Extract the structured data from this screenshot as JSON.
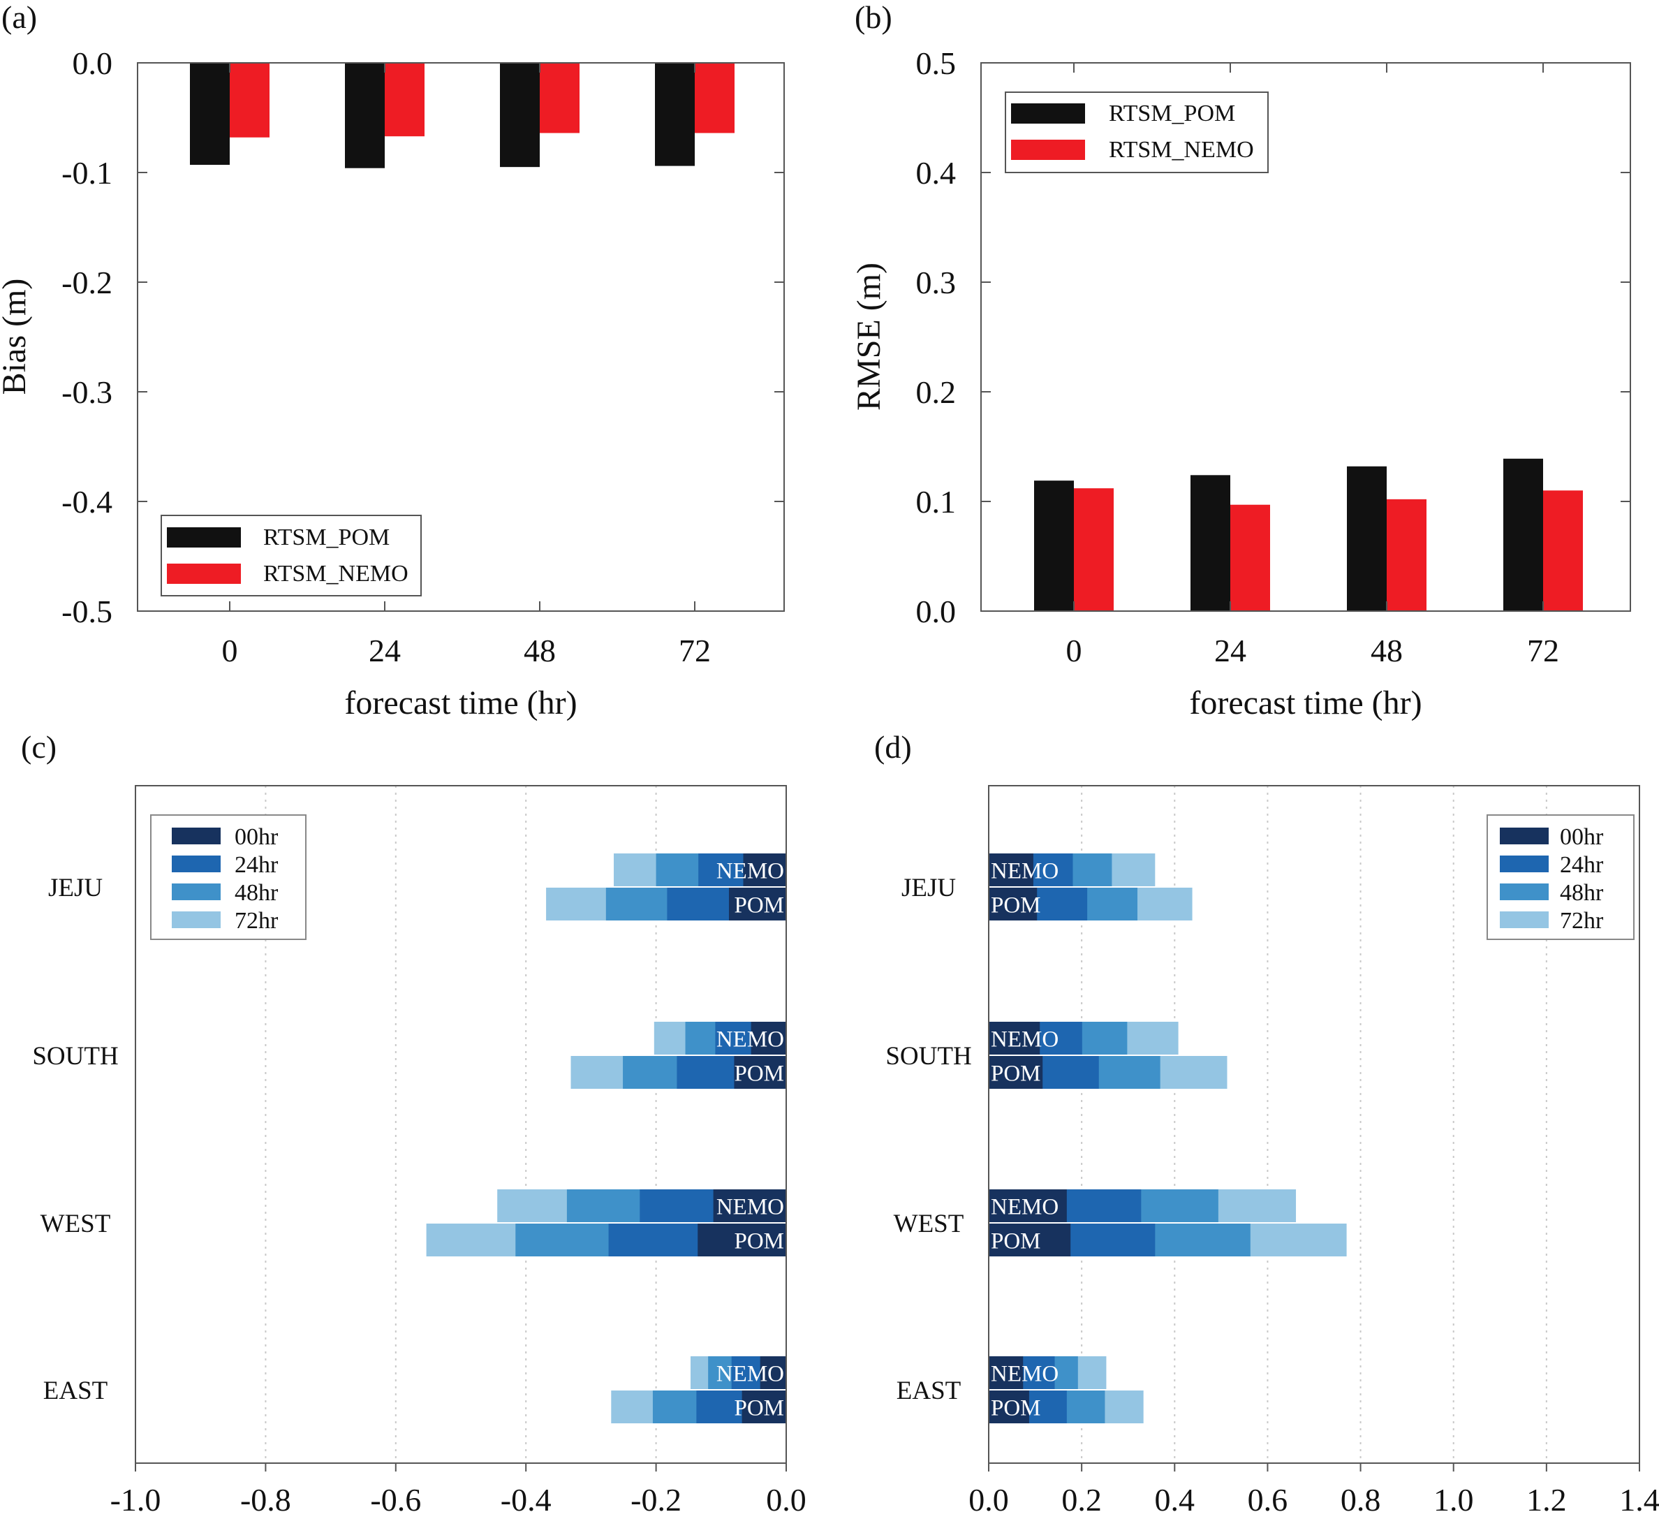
{
  "chart_data": [
    {
      "panel": "(a)",
      "type": "bar",
      "title": "",
      "xlabel": "forecast time (hr)",
      "ylabel": "Bias (m)",
      "categories": [
        "0",
        "24",
        "48",
        "72"
      ],
      "ylim": [
        -0.5,
        0.0
      ],
      "yticks": [
        "0.0",
        "-0.1",
        "-0.2",
        "-0.3",
        "-0.4",
        "-0.5"
      ],
      "ytick_values": [
        0.0,
        -0.1,
        -0.2,
        -0.3,
        -0.4,
        -0.5
      ],
      "legend_position": "bottom-left",
      "series": [
        {
          "name": "RTSM_POM",
          "color": "#111111",
          "values": [
            -0.093,
            -0.096,
            -0.095,
            -0.094
          ]
        },
        {
          "name": "RTSM_NEMO",
          "color": "#ee1c24",
          "values": [
            -0.068,
            -0.067,
            -0.064,
            -0.064
          ]
        }
      ]
    },
    {
      "panel": "(b)",
      "type": "bar",
      "title": "",
      "xlabel": "forecast time (hr)",
      "ylabel": "RMSE (m)",
      "categories": [
        "0",
        "24",
        "48",
        "72"
      ],
      "ylim": [
        0.0,
        0.5
      ],
      "yticks": [
        "0.5",
        "0.4",
        "0.3",
        "0.2",
        "0.1",
        "0.0"
      ],
      "ytick_values": [
        0.5,
        0.4,
        0.3,
        0.2,
        0.1,
        0.0
      ],
      "legend_position": "top-left",
      "series": [
        {
          "name": "RTSM_POM",
          "color": "#111111",
          "values": [
            0.119,
            0.124,
            0.132,
            0.139
          ]
        },
        {
          "name": "RTSM_NEMO",
          "color": "#ee1c24",
          "values": [
            0.112,
            0.097,
            0.102,
            0.11
          ]
        }
      ]
    },
    {
      "panel": "(c)",
      "type": "bar",
      "orientation": "horizontal-stacked",
      "title": "",
      "xlim": [
        -1.0,
        0.0
      ],
      "xticks": [
        "-1.0",
        "-0.8",
        "-0.6",
        "-0.4",
        "-0.2",
        "0.0"
      ],
      "xtick_values": [
        -1.0,
        -0.8,
        -0.6,
        -0.4,
        -0.2,
        0.0
      ],
      "legend_position": "top-left",
      "categories": [
        "JEJU",
        "SOUTH",
        "WEST",
        "EAST"
      ],
      "bar_labels": [
        "NEMO",
        "POM"
      ],
      "stack_names": [
        "00hr",
        "24hr",
        "48hr",
        "72hr"
      ],
      "stack_colors": [
        "#17325e",
        "#1e66b0",
        "#3f91c9",
        "#94c5e3"
      ],
      "values": {
        "JEJU": {
          "NEMO": [
            -0.066,
            -0.135,
            -0.2,
            -0.265
          ],
          "POM": [
            -0.088,
            -0.183,
            -0.277,
            -0.369
          ]
        },
        "SOUTH": {
          "NEMO": [
            -0.054,
            -0.109,
            -0.155,
            -0.203
          ],
          "POM": [
            -0.08,
            -0.168,
            -0.251,
            -0.331
          ]
        },
        "WEST": {
          "NEMO": [
            -0.112,
            -0.225,
            -0.337,
            -0.444
          ],
          "POM": [
            -0.136,
            -0.273,
            -0.416,
            -0.553
          ]
        },
        "EAST": {
          "NEMO": [
            -0.04,
            -0.084,
            -0.12,
            -0.147
          ],
          "POM": [
            -0.068,
            -0.138,
            -0.205,
            -0.269
          ]
        }
      }
    },
    {
      "panel": "(d)",
      "type": "bar",
      "orientation": "horizontal-stacked",
      "title": "",
      "xlim": [
        0.0,
        1.4
      ],
      "xticks": [
        "0.0",
        "0.2",
        "0.4",
        "0.6",
        "0.8",
        "1.0",
        "1.2",
        "1.4"
      ],
      "xtick_values": [
        0.0,
        0.2,
        0.4,
        0.6,
        0.8,
        1.0,
        1.2,
        1.4
      ],
      "legend_position": "top-right",
      "categories": [
        "JEJU",
        "SOUTH",
        "WEST",
        "EAST"
      ],
      "bar_labels": [
        "NEMO",
        "POM"
      ],
      "stack_names": [
        "00hr",
        "24hr",
        "48hr",
        "72hr"
      ],
      "stack_colors": [
        "#17325e",
        "#1e66b0",
        "#3f91c9",
        "#94c5e3"
      ],
      "values": {
        "JEJU": {
          "NEMO": [
            0.096,
            0.181,
            0.265,
            0.358
          ],
          "POM": [
            0.104,
            0.212,
            0.32,
            0.438
          ]
        },
        "SOUTH": {
          "NEMO": [
            0.11,
            0.201,
            0.298,
            0.408
          ],
          "POM": [
            0.116,
            0.237,
            0.369,
            0.513
          ]
        },
        "WEST": {
          "NEMO": [
            0.168,
            0.328,
            0.494,
            0.661
          ],
          "POM": [
            0.176,
            0.358,
            0.563,
            0.77
          ]
        },
        "EAST": {
          "NEMO": [
            0.074,
            0.142,
            0.192,
            0.253
          ],
          "POM": [
            0.087,
            0.168,
            0.25,
            0.333
          ]
        }
      }
    }
  ]
}
